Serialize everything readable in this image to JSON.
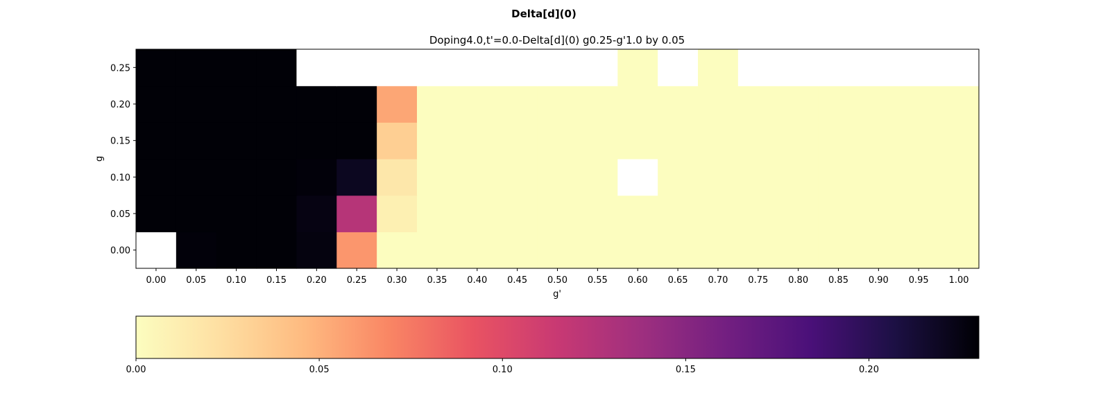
{
  "figure": {
    "suptitle": "Delta[d](0)",
    "title": "Doping4.0,t'=0.0-Delta[d](0)  g0.25-g'1.0 by 0.05"
  },
  "chart_data": {
    "type": "heatmap",
    "colormap": "magma_r",
    "title": "Doping4.0,t'=0.0-Delta[d](0)  g0.25-g'1.0 by 0.05",
    "xlabel": "g'",
    "ylabel": "g",
    "x": [
      "0.00",
      "0.05",
      "0.10",
      "0.15",
      "0.20",
      "0.25",
      "0.30",
      "0.35",
      "0.40",
      "0.45",
      "0.50",
      "0.55",
      "0.60",
      "0.65",
      "0.70",
      "0.75",
      "0.80",
      "0.85",
      "0.90",
      "0.95",
      "1.00"
    ],
    "y": [
      "0.00",
      "0.05",
      "0.10",
      "0.15",
      "0.20",
      "0.25"
    ],
    "values": [
      [
        null,
        0.228,
        0.229,
        0.229,
        0.226,
        0.062,
        0.0,
        0.0,
        0.0,
        0.0,
        0.0,
        0.0,
        0.0,
        0.0,
        0.0,
        0.0,
        0.0,
        0.0,
        0.0,
        0.0,
        0.0
      ],
      [
        0.229,
        0.229,
        0.229,
        0.229,
        0.225,
        0.125,
        0.01,
        0.0,
        0.0,
        0.0,
        0.0,
        0.0,
        0.0,
        0.0,
        0.0,
        0.0,
        0.0,
        0.0,
        0.0,
        0.0,
        0.0
      ],
      [
        0.229,
        0.229,
        0.229,
        0.229,
        0.228,
        0.22,
        0.017,
        0.0,
        0.0,
        0.0,
        0.0,
        0.0,
        null,
        0.0,
        0.0,
        0.0,
        0.0,
        0.0,
        0.0,
        0.0,
        0.0
      ],
      [
        0.229,
        0.229,
        0.229,
        0.229,
        0.229,
        0.229,
        0.033,
        0.0,
        0.0,
        0.0,
        0.0,
        0.0,
        0.0,
        0.0,
        0.0,
        0.0,
        0.0,
        0.0,
        0.0,
        0.0,
        0.0
      ],
      [
        0.229,
        0.229,
        0.229,
        0.229,
        0.229,
        0.229,
        0.055,
        0.0,
        0.0,
        0.0,
        0.0,
        0.0,
        0.0,
        0.0,
        0.0,
        0.0,
        0.0,
        0.0,
        0.0,
        0.0,
        0.0
      ],
      [
        0.229,
        0.229,
        0.229,
        0.229,
        null,
        null,
        null,
        null,
        null,
        null,
        null,
        null,
        0.0,
        null,
        0.0,
        null,
        null,
        null,
        null,
        null,
        null
      ]
    ],
    "colorbar": {
      "vmin": 0.0,
      "vmax": 0.23,
      "ticks": [
        "0.00",
        "0.05",
        "0.10",
        "0.15",
        "0.20"
      ]
    }
  }
}
